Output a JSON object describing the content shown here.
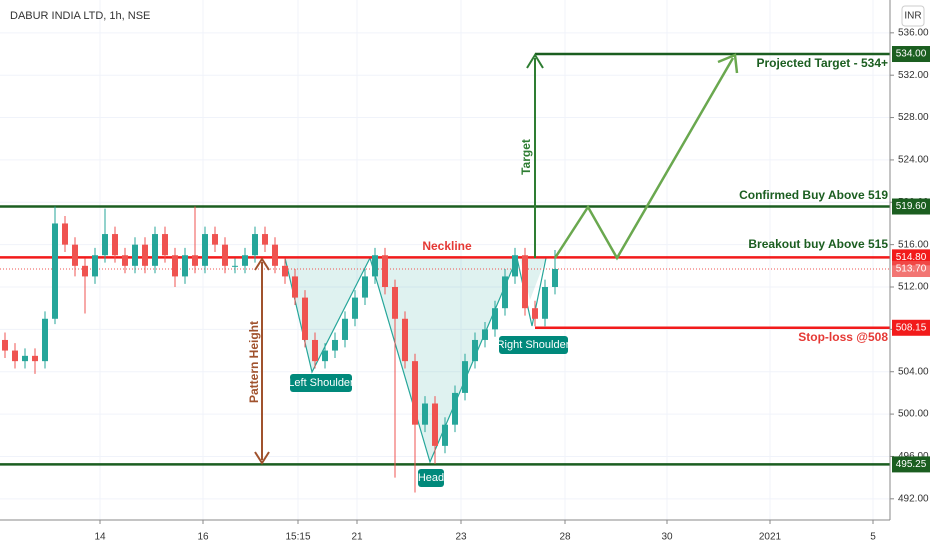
{
  "chart_data": {
    "type": "candlestick",
    "title": "DABUR INDIA LTD, 1h, NSE",
    "currency": "INR",
    "up_color": "#26a69a",
    "down_color": "#ef5350",
    "open": [
      507,
      506,
      505,
      505.5,
      505,
      509,
      518,
      516,
      514,
      513,
      515,
      517,
      515,
      514,
      516,
      514,
      517,
      515,
      513,
      515,
      514,
      517,
      516,
      514,
      514,
      515,
      517,
      516,
      514,
      513,
      511,
      507,
      505,
      506,
      507,
      509,
      511,
      513,
      515,
      512,
      509,
      505,
      499,
      501,
      497,
      499,
      502,
      505,
      507,
      508,
      510,
      513,
      515,
      510,
      509,
      512
    ],
    "high": [
      507.7,
      506.7,
      506.2,
      506.2,
      509.7,
      519.6,
      518.7,
      516.7,
      514.7,
      515.7,
      519.4,
      517.7,
      515.7,
      516.7,
      516.7,
      517.7,
      517.7,
      515.7,
      515.7,
      519.6,
      517.7,
      517.7,
      516.7,
      514.7,
      515.7,
      517.7,
      517.7,
      516.7,
      514.7,
      513.7,
      511.7,
      507.7,
      506.7,
      507.7,
      509.7,
      511.7,
      513.7,
      515.7,
      515.7,
      512.7,
      509.7,
      505.7,
      501.7,
      501.7,
      499.7,
      502.7,
      505.7,
      507.7,
      508.7,
      510.7,
      513.7,
      515.7,
      515.7,
      510.7,
      512.7,
      515.5
    ],
    "low": [
      505.3,
      504.3,
      504.3,
      503.8,
      504.3,
      508.5,
      515.3,
      513,
      509.5,
      512.3,
      514.3,
      514.3,
      513.3,
      513.3,
      513.3,
      513.3,
      514.3,
      512,
      512.3,
      513.3,
      513.3,
      515.3,
      513.3,
      513.3,
      513.3,
      514.3,
      515.3,
      513.3,
      512.3,
      510.3,
      506.3,
      504.3,
      504.3,
      505.3,
      506.3,
      508.3,
      510.3,
      512.3,
      511.3,
      494,
      504.3,
      492.6,
      498.3,
      495.3,
      496.3,
      498.3,
      501.3,
      504.3,
      506.3,
      507.3,
      509.3,
      512.3,
      509.3,
      508.3,
      508.3,
      511.3
    ],
    "close": [
      506,
      505,
      505.5,
      505,
      509,
      518,
      516,
      514,
      513,
      515,
      517,
      515,
      514,
      516,
      514,
      517,
      515,
      513,
      515,
      514,
      517,
      516,
      514,
      514,
      515,
      517,
      516,
      514,
      513,
      511,
      507,
      505,
      506,
      507,
      509,
      511,
      513,
      515,
      512,
      509,
      505,
      499,
      501,
      497,
      499,
      502,
      505,
      507,
      508,
      510,
      513,
      515,
      510,
      509,
      512,
      513.7
    ],
    "xlim": [
      -0.5,
      88.5
    ],
    "xticks": [
      {
        "value": 9.5,
        "label": "14"
      },
      {
        "value": 19.8,
        "label": "16"
      },
      {
        "value": 29.3,
        "label": "15:15"
      },
      {
        "value": 35.2,
        "label": "21"
      },
      {
        "value": 45.6,
        "label": "23"
      },
      {
        "value": 56,
        "label": "28"
      },
      {
        "value": 66.2,
        "label": "30"
      },
      {
        "value": 76.5,
        "label": "2021"
      },
      {
        "value": 86.8,
        "label": "5"
      }
    ],
    "ylim": [
      490,
      539.1
    ],
    "yticks": [
      {
        "value": 492,
        "label": "492.00"
      },
      {
        "value": 496,
        "label": "496.00"
      },
      {
        "value": 500,
        "label": "500.00"
      },
      {
        "value": 504,
        "label": "504.00"
      },
      {
        "value": 508,
        "label": "508.00"
      },
      {
        "value": 512,
        "label": "512.00"
      },
      {
        "value": 516,
        "label": "516.00"
      },
      {
        "value": 520,
        "label": "520.00"
      },
      {
        "value": 524,
        "label": "524.00"
      },
      {
        "value": 528,
        "label": "528.00"
      },
      {
        "value": 532,
        "label": "532.00"
      },
      {
        "value": 536,
        "label": "536.00"
      }
    ],
    "grid": true,
    "levels": [
      {
        "value": 534,
        "label": "534.00",
        "color": "#1b5e20"
      },
      {
        "value": 519.6,
        "label": "519.60",
        "color": "#1b5e20"
      },
      {
        "value": 514.8,
        "label": "514.80",
        "color": "#f21b1b"
      },
      {
        "value": 513.7,
        "label": "513.70",
        "color": "#ef5350"
      },
      {
        "value": 508.15,
        "label": "508.15",
        "color": "#f21b1b"
      },
      {
        "value": 495.25,
        "label": "495.25",
        "color": "#1b5e20"
      }
    ],
    "annotations": {
      "projected_target": "Projected Target - 534+",
      "confirmed_buy": "Confirmed Buy Above 519",
      "breakout_buy": "Breakout buy Above 515",
      "stop_loss": "Stop-loss @508",
      "neckline": "Neckline",
      "target": "Target",
      "pattern_height": "Pattern Height",
      "left_shoulder": "Left Shoulder",
      "head": "Head",
      "right_shoulder": "Right Shoulder"
    }
  }
}
